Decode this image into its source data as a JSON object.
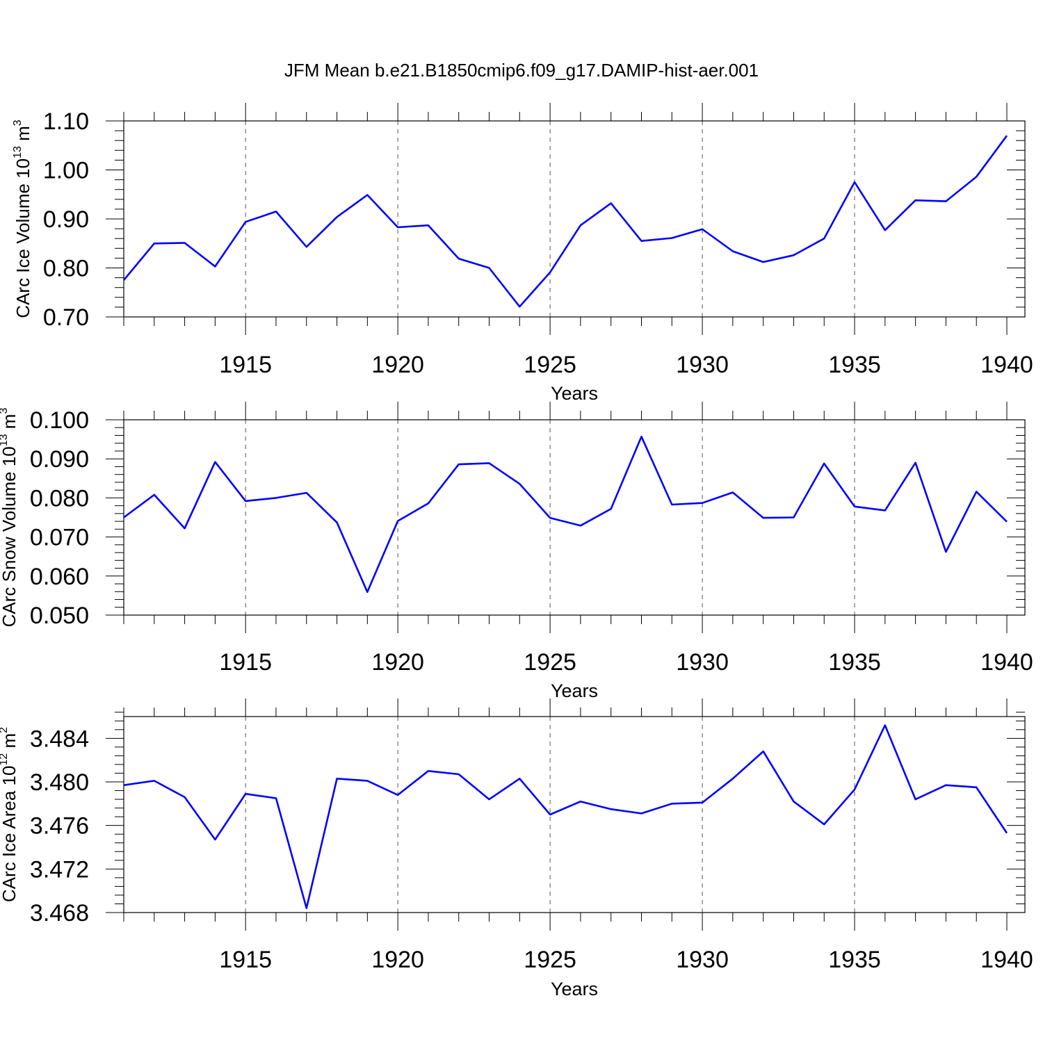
{
  "title": "JFM Mean b.e21.B1850cmip6.f09_g17.DAMIP-hist-aer.001",
  "colors": {
    "series": "#0000ff",
    "axes": "#000000",
    "grid": "#555555"
  },
  "chart_data": [
    {
      "type": "line",
      "ylabel_main": "CArc Ice Volume 10",
      "ylabel_exp": "13",
      "ylabel_unit": " m",
      "ylabel_unit_exp": "3",
      "xlabel": "Years",
      "xlim": [
        1911,
        1940
      ],
      "ylim": [
        0.7,
        1.1
      ],
      "yticks": [
        "0.70",
        "0.80",
        "0.90",
        "1.00",
        "1.10"
      ],
      "ytick_values": [
        0.7,
        0.8,
        0.9,
        1.0,
        1.1
      ],
      "xticks": [
        "1915",
        "1920",
        "1925",
        "1930",
        "1935",
        "1940"
      ],
      "xtick_values": [
        1915,
        1920,
        1925,
        1930,
        1935,
        1940
      ],
      "x": [
        1911,
        1912,
        1913,
        1914,
        1915,
        1916,
        1917,
        1918,
        1919,
        1920,
        1921,
        1922,
        1923,
        1924,
        1925,
        1926,
        1927,
        1928,
        1929,
        1930,
        1931,
        1932,
        1933,
        1934,
        1935,
        1936,
        1937,
        1938,
        1939,
        1940
      ],
      "values": [
        0.775,
        0.85,
        0.851,
        0.803,
        0.894,
        0.915,
        0.843,
        0.904,
        0.949,
        0.883,
        0.887,
        0.819,
        0.8,
        0.721,
        0.791,
        0.887,
        0.932,
        0.855,
        0.861,
        0.879,
        0.834,
        0.812,
        0.826,
        0.86,
        0.975,
        0.877,
        0.938,
        0.936,
        0.986,
        1.07
      ],
      "grid": "vertical dashed at major x ticks"
    },
    {
      "type": "line",
      "ylabel_main": "CArc Snow Volume 10",
      "ylabel_exp": "13",
      "ylabel_unit": " m",
      "ylabel_unit_exp": "3",
      "xlabel": "Years",
      "xlim": [
        1911,
        1940
      ],
      "ylim": [
        0.05,
        0.1
      ],
      "yticks": [
        "0.050",
        "0.060",
        "0.070",
        "0.080",
        "0.090",
        "0.100"
      ],
      "ytick_values": [
        0.05,
        0.06,
        0.07,
        0.08,
        0.09,
        0.1
      ],
      "xticks": [
        "1915",
        "1920",
        "1925",
        "1930",
        "1935",
        "1940"
      ],
      "xtick_values": [
        1915,
        1920,
        1925,
        1930,
        1935,
        1940
      ],
      "x": [
        1911,
        1912,
        1913,
        1914,
        1915,
        1916,
        1917,
        1918,
        1919,
        1920,
        1921,
        1922,
        1923,
        1924,
        1925,
        1926,
        1927,
        1928,
        1929,
        1930,
        1931,
        1932,
        1933,
        1934,
        1935,
        1936,
        1937,
        1938,
        1939,
        1940
      ],
      "values": [
        0.075,
        0.0808,
        0.0722,
        0.0892,
        0.0792,
        0.08,
        0.0813,
        0.0737,
        0.0559,
        0.0741,
        0.0786,
        0.0886,
        0.0889,
        0.0836,
        0.0749,
        0.0729,
        0.0772,
        0.0957,
        0.0783,
        0.0787,
        0.0814,
        0.0749,
        0.075,
        0.0888,
        0.0778,
        0.0768,
        0.089,
        0.0662,
        0.0816,
        0.0739
      ],
      "grid": "vertical dashed at major x ticks"
    },
    {
      "type": "line",
      "ylabel_main": "CArc Ice Area 10",
      "ylabel_exp": "12",
      "ylabel_unit": " m",
      "ylabel_unit_exp": "2",
      "xlabel": "Years",
      "xlim": [
        1911,
        1940
      ],
      "ylim": [
        3.468,
        3.486
      ],
      "yticks": [
        "3.468",
        "3.472",
        "3.476",
        "3.480",
        "3.484"
      ],
      "ytick_values": [
        3.468,
        3.472,
        3.476,
        3.48,
        3.484
      ],
      "xticks": [
        "1915",
        "1920",
        "1925",
        "1930",
        "1935",
        "1940"
      ],
      "xtick_values": [
        1915,
        1920,
        1925,
        1930,
        1935,
        1940
      ],
      "x": [
        1911,
        1912,
        1913,
        1914,
        1915,
        1916,
        1917,
        1918,
        1919,
        1920,
        1921,
        1922,
        1923,
        1924,
        1925,
        1926,
        1927,
        1928,
        1929,
        1930,
        1931,
        1932,
        1933,
        1934,
        1935,
        1936,
        1937,
        1938,
        1939,
        1940
      ],
      "values": [
        3.4797,
        3.4801,
        3.4786,
        3.4747,
        3.4789,
        3.4785,
        3.4684,
        3.4803,
        3.4801,
        3.4788,
        3.481,
        3.4807,
        3.4784,
        3.4803,
        3.477,
        3.4782,
        3.4775,
        3.4771,
        3.478,
        3.4781,
        3.4803,
        3.4828,
        3.4782,
        3.4761,
        3.4793,
        3.4852,
        3.4784,
        3.4797,
        3.4795,
        3.4753
      ],
      "grid": "vertical dashed at major x ticks"
    }
  ]
}
